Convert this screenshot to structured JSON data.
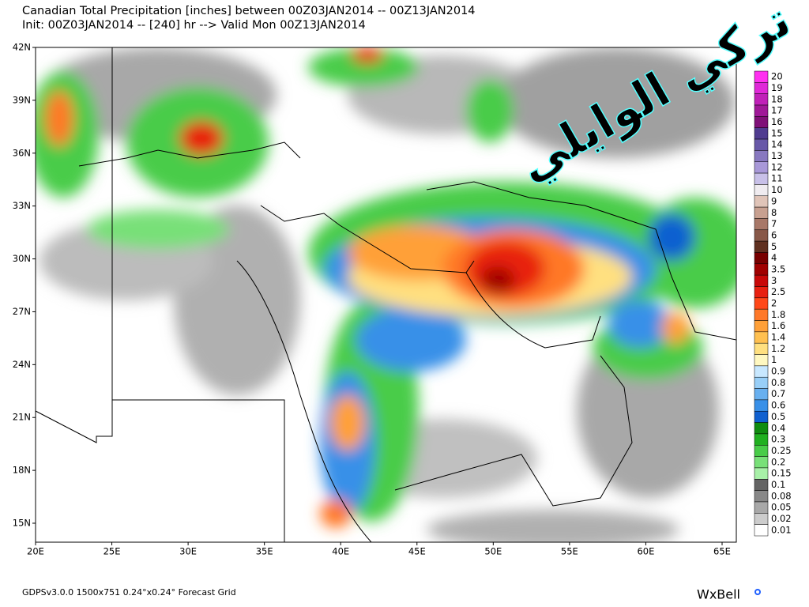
{
  "header": {
    "line1": "Canadian Total Precipitation [inches] between 00Z03JAN2014 -- 00Z13JAN2014",
    "line2": "Init: 00Z03JAN2014 -- [240] hr --> Valid Mon 00Z13JAN2014"
  },
  "watermark": "تركي الوايلي",
  "map": {
    "lat_labels": [
      "42N",
      "39N",
      "36N",
      "33N",
      "30N",
      "27N",
      "24N",
      "21N",
      "18N",
      "15N"
    ],
    "lon_labels": [
      "20E",
      "25E",
      "30E",
      "35E",
      "40E",
      "45E",
      "50E",
      "55E",
      "60E",
      "65E"
    ]
  },
  "colorbar": [
    {
      "label": "20",
      "color": "#ff30f0"
    },
    {
      "label": "19",
      "color": "#e028d8"
    },
    {
      "label": "18",
      "color": "#c020b8"
    },
    {
      "label": "17",
      "color": "#a01898"
    },
    {
      "label": "16",
      "color": "#801078"
    },
    {
      "label": "15",
      "color": "#503c90"
    },
    {
      "label": "14",
      "color": "#6858a8"
    },
    {
      "label": "13",
      "color": "#8878c0"
    },
    {
      "label": "12",
      "color": "#a898d8"
    },
    {
      "label": "11",
      "color": "#c8c0e8"
    },
    {
      "label": "10",
      "color": "#f0ecf0"
    },
    {
      "label": "9",
      "color": "#e0c4b8"
    },
    {
      "label": "8",
      "color": "#c8a090"
    },
    {
      "label": "7",
      "color": "#a87868"
    },
    {
      "label": "6",
      "color": "#885848"
    },
    {
      "label": "5",
      "color": "#603020"
    },
    {
      "label": "4",
      "color": "#780000"
    },
    {
      "label": "3.5",
      "color": "#a00000"
    },
    {
      "label": "3",
      "color": "#c80808"
    },
    {
      "label": "2.5",
      "color": "#e82010"
    },
    {
      "label": "2",
      "color": "#ff4818"
    },
    {
      "label": "1.8",
      "color": "#ff7828"
    },
    {
      "label": "1.6",
      "color": "#ffa038"
    },
    {
      "label": "1.4",
      "color": "#ffc050"
    },
    {
      "label": "1.2",
      "color": "#ffe080"
    },
    {
      "label": "1",
      "color": "#fff8c0"
    },
    {
      "label": "0.9",
      "color": "#c8e8ff"
    },
    {
      "label": "0.8",
      "color": "#98cff8"
    },
    {
      "label": "0.7",
      "color": "#68b0f0"
    },
    {
      "label": "0.6",
      "color": "#3890e8"
    },
    {
      "label": "0.5",
      "color": "#1060d0"
    },
    {
      "label": "0.4",
      "color": "#108c10"
    },
    {
      "label": "0.3",
      "color": "#20b020"
    },
    {
      "label": "0.25",
      "color": "#48cc48"
    },
    {
      "label": "0.2",
      "color": "#78e078"
    },
    {
      "label": "0.15",
      "color": "#a8f0a8"
    },
    {
      "label": "0.1",
      "color": "#646464"
    },
    {
      "label": "0.08",
      "color": "#888888"
    },
    {
      "label": "0.05",
      "color": "#a8a8a8"
    },
    {
      "label": "0.02",
      "color": "#cccccc"
    },
    {
      "label": "0.01",
      "color": "#ffffff"
    }
  ],
  "footer": {
    "left": "GDPSv3.0.0 1500x751 0.24°x0.24° Forecast Grid",
    "logo": "WxBell"
  }
}
